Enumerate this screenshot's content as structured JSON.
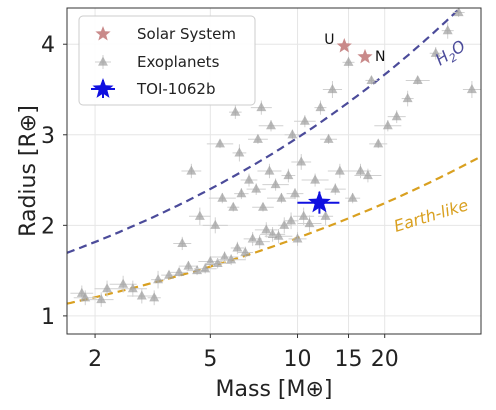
{
  "chart_data": {
    "type": "scatter",
    "xlabel": "Mass [M⊕]",
    "ylabel": "Radius [R⊕]",
    "x_scale": "log",
    "xlim": [
      1.6,
      43
    ],
    "ylim": [
      0.8,
      4.4
    ],
    "x_ticks": [
      2,
      5,
      10,
      15,
      20
    ],
    "y_ticks": [
      1,
      2,
      3,
      4
    ],
    "grid": true,
    "legend": {
      "placement": "top-left",
      "entries": [
        "Solar System",
        "Exoplanets",
        "TOI-1062b"
      ]
    },
    "series": [
      {
        "name": "Solar System",
        "marker": "star",
        "color": "#c98a8a",
        "points": [
          {
            "x": 14.5,
            "y": 3.98,
            "label": "U"
          },
          {
            "x": 17.1,
            "y": 3.86,
            "label": "N"
          }
        ]
      },
      {
        "name": "Exoplanets",
        "marker": "triangle",
        "color": "#9e9e9e",
        "points": [
          {
            "x": 1.8,
            "y": 1.25
          },
          {
            "x": 1.85,
            "y": 1.2
          },
          {
            "x": 2.2,
            "y": 1.3
          },
          {
            "x": 2.5,
            "y": 1.35
          },
          {
            "x": 2.7,
            "y": 1.3
          },
          {
            "x": 2.9,
            "y": 1.22
          },
          {
            "x": 3.3,
            "y": 1.4
          },
          {
            "x": 3.6,
            "y": 1.45
          },
          {
            "x": 3.9,
            "y": 1.48
          },
          {
            "x": 4.2,
            "y": 1.55
          },
          {
            "x": 4.5,
            "y": 1.5
          },
          {
            "x": 4.8,
            "y": 1.52
          },
          {
            "x": 5.0,
            "y": 1.6
          },
          {
            "x": 5.3,
            "y": 1.58
          },
          {
            "x": 5.6,
            "y": 1.65
          },
          {
            "x": 5.9,
            "y": 1.62
          },
          {
            "x": 6.2,
            "y": 1.75
          },
          {
            "x": 6.6,
            "y": 1.7
          },
          {
            "x": 7.0,
            "y": 1.85
          },
          {
            "x": 7.4,
            "y": 1.82
          },
          {
            "x": 7.8,
            "y": 1.95
          },
          {
            "x": 8.2,
            "y": 1.9
          },
          {
            "x": 8.6,
            "y": 1.88
          },
          {
            "x": 9.0,
            "y": 2.0
          },
          {
            "x": 9.5,
            "y": 2.05
          },
          {
            "x": 10.0,
            "y": 1.85
          },
          {
            "x": 10.5,
            "y": 2.1
          },
          {
            "x": 11.0,
            "y": 2.02
          },
          {
            "x": 4.0,
            "y": 1.8
          },
          {
            "x": 4.6,
            "y": 2.1
          },
          {
            "x": 5.2,
            "y": 2.0
          },
          {
            "x": 5.5,
            "y": 2.3
          },
          {
            "x": 6.0,
            "y": 2.2
          },
          {
            "x": 6.4,
            "y": 2.35
          },
          {
            "x": 6.8,
            "y": 2.5
          },
          {
            "x": 7.2,
            "y": 2.4
          },
          {
            "x": 7.6,
            "y": 2.2
          },
          {
            "x": 8.0,
            "y": 2.6
          },
          {
            "x": 8.4,
            "y": 2.45
          },
          {
            "x": 8.8,
            "y": 2.3
          },
          {
            "x": 9.3,
            "y": 2.55
          },
          {
            "x": 9.8,
            "y": 2.35
          },
          {
            "x": 10.3,
            "y": 2.7
          },
          {
            "x": 11.5,
            "y": 2.5
          },
          {
            "x": 12.5,
            "y": 2.1
          },
          {
            "x": 13.5,
            "y": 2.4
          },
          {
            "x": 14.0,
            "y": 2.6
          },
          {
            "x": 15.5,
            "y": 2.3
          },
          {
            "x": 16.5,
            "y": 2.6
          },
          {
            "x": 17.5,
            "y": 2.55
          },
          {
            "x": 19.0,
            "y": 2.9
          },
          {
            "x": 6.3,
            "y": 2.8
          },
          {
            "x": 7.3,
            "y": 2.95
          },
          {
            "x": 8.1,
            "y": 3.1
          },
          {
            "x": 9.6,
            "y": 3.0
          },
          {
            "x": 10.6,
            "y": 3.15
          },
          {
            "x": 12.0,
            "y": 3.3
          },
          {
            "x": 13.2,
            "y": 3.5
          },
          {
            "x": 7.5,
            "y": 3.3
          },
          {
            "x": 6.1,
            "y": 3.25
          },
          {
            "x": 5.4,
            "y": 2.9
          },
          {
            "x": 4.3,
            "y": 2.6
          },
          {
            "x": 20.5,
            "y": 3.1
          },
          {
            "x": 22.0,
            "y": 3.2
          },
          {
            "x": 24.0,
            "y": 3.4
          },
          {
            "x": 26.0,
            "y": 3.6
          },
          {
            "x": 30.0,
            "y": 3.9
          },
          {
            "x": 33.0,
            "y": 4.15
          },
          {
            "x": 36.0,
            "y": 4.35
          },
          {
            "x": 40.0,
            "y": 3.5
          },
          {
            "x": 18.0,
            "y": 3.6
          },
          {
            "x": 15.0,
            "y": 3.8
          },
          {
            "x": 3.2,
            "y": 1.2
          },
          {
            "x": 2.1,
            "y": 1.18
          },
          {
            "x": 12.8,
            "y": 2.95
          }
        ]
      },
      {
        "name": "TOI-1062b",
        "marker": "star",
        "color": "#1010e0",
        "points": [
          {
            "x": 11.9,
            "y": 2.25
          }
        ]
      }
    ],
    "curves": [
      {
        "name": "H2O",
        "label": "H",
        "label_sub": "2",
        "label_tail": "O",
        "color": "#4b4b9a",
        "style": "dashed",
        "a": 1.47,
        "b": 0.305
      },
      {
        "name": "Earth-like",
        "label": "Earth-like",
        "color": "#d9a020",
        "style": "dashed",
        "a": 1.0,
        "b": 0.27
      }
    ]
  }
}
